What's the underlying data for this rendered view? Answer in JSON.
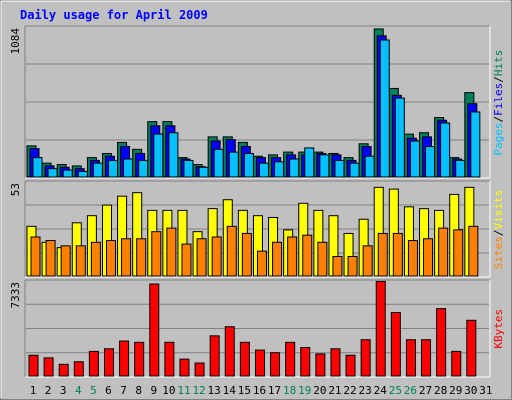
{
  "title": "Daily usage for April 2009",
  "colors": {
    "background": "#c0c0c0",
    "plot_bg": "#c0c0c0",
    "title": "#0000ff",
    "hits": "#00805c",
    "files": "#0000ff",
    "pages": "#00c0ff",
    "visits": "#ffff00",
    "sites": "#ff8000",
    "kbytes": "#ff0000",
    "weekend_tick": "#00805c",
    "weekday_tick": "#000000"
  },
  "chart_data": [
    {
      "type": "bar",
      "panel": "hits-files-pages",
      "y_axis_max_label": "1084",
      "ylim": [
        0,
        1084
      ],
      "legend": [
        {
          "label": "Pages",
          "color": "#00c0ff"
        },
        {
          "label": "/",
          "color": "#000000"
        },
        {
          "label": "Files",
          "color": "#0000ff"
        },
        {
          "label": "/",
          "color": "#000000"
        },
        {
          "label": "Hits",
          "color": "#00805c"
        }
      ],
      "categories": [
        "1",
        "2",
        "3",
        "4",
        "5",
        "6",
        "7",
        "8",
        "9",
        "10",
        "11",
        "12",
        "13",
        "14",
        "15",
        "16",
        "17",
        "18",
        "19",
        "20",
        "21",
        "22",
        "23",
        "24",
        "25",
        "26",
        "27",
        "28",
        "29",
        "30",
        "31"
      ],
      "series": [
        {
          "name": "Hits",
          "values": [
            225,
            100,
            90,
            80,
            140,
            170,
            250,
            200,
            400,
            400,
            140,
            90,
            290,
            290,
            250,
            150,
            160,
            180,
            180,
            180,
            170,
            140,
            240,
            1070,
            640,
            310,
            320,
            430,
            140,
            610,
            0
          ]
        },
        {
          "name": "Files",
          "values": [
            205,
            80,
            70,
            60,
            120,
            150,
            220,
            170,
            370,
            370,
            130,
            75,
            260,
            270,
            220,
            140,
            140,
            160,
            160,
            170,
            160,
            120,
            220,
            1020,
            590,
            280,
            290,
            410,
            130,
            530,
            0
          ]
        },
        {
          "name": "Pages",
          "values": [
            140,
            60,
            50,
            40,
            100,
            120,
            130,
            120,
            310,
            320,
            120,
            70,
            200,
            180,
            170,
            100,
            110,
            130,
            210,
            160,
            120,
            100,
            150,
            990,
            570,
            260,
            220,
            390,
            120,
            470,
            0
          ]
        }
      ]
    },
    {
      "type": "bar",
      "panel": "visits-sites",
      "y_axis_max_label": "53",
      "ylim": [
        0,
        53
      ],
      "legend": [
        {
          "label": "Sites",
          "color": "#ff8000"
        },
        {
          "label": "/",
          "color": "#000000"
        },
        {
          "label": "Visits",
          "color": "#ffff00"
        }
      ],
      "categories": [
        "1",
        "2",
        "3",
        "4",
        "5",
        "6",
        "7",
        "8",
        "9",
        "10",
        "11",
        "12",
        "13",
        "14",
        "15",
        "16",
        "17",
        "18",
        "19",
        "20",
        "21",
        "22",
        "23",
        "24",
        "25",
        "26",
        "27",
        "28",
        "29",
        "30",
        "31"
      ],
      "series": [
        {
          "name": "Visits",
          "values": [
            28,
            19,
            16,
            30,
            34,
            40,
            45,
            47,
            37,
            37,
            37,
            25,
            38,
            43,
            37,
            34,
            33,
            26,
            41,
            37,
            34,
            24,
            32,
            50,
            49,
            39,
            38,
            37,
            46,
            50,
            0
          ]
        },
        {
          "name": "Sites",
          "values": [
            22,
            20,
            17,
            17,
            19,
            20,
            21,
            21,
            25,
            27,
            18,
            21,
            22,
            28,
            24,
            14,
            19,
            22,
            23,
            19,
            11,
            11,
            17,
            24,
            24,
            20,
            21,
            27,
            26,
            28,
            0
          ]
        }
      ]
    },
    {
      "type": "bar",
      "panel": "kbytes",
      "y_axis_max_label": "7333",
      "ylim": [
        0,
        7333
      ],
      "legend": [
        {
          "label": "KBytes",
          "color": "#ff0000"
        }
      ],
      "categories": [
        "1",
        "2",
        "3",
        "4",
        "5",
        "6",
        "7",
        "8",
        "9",
        "10",
        "11",
        "12",
        "13",
        "14",
        "15",
        "16",
        "17",
        "18",
        "19",
        "20",
        "21",
        "22",
        "23",
        "24",
        "25",
        "26",
        "27",
        "28",
        "29",
        "30",
        "31"
      ],
      "series": [
        {
          "name": "KBytes",
          "values": [
            1600,
            1400,
            900,
            1100,
            1900,
            2100,
            2700,
            2600,
            7100,
            2600,
            1300,
            1000,
            3100,
            3800,
            2600,
            2000,
            1800,
            2600,
            2200,
            1700,
            2100,
            1600,
            2800,
            7300,
            4900,
            2800,
            2800,
            5200,
            1900,
            4300,
            0
          ]
        }
      ]
    }
  ],
  "x_ticks": [
    {
      "label": "1",
      "weekend": false
    },
    {
      "label": "2",
      "weekend": false
    },
    {
      "label": "3",
      "weekend": false
    },
    {
      "label": "4",
      "weekend": true
    },
    {
      "label": "5",
      "weekend": true
    },
    {
      "label": "6",
      "weekend": false
    },
    {
      "label": "7",
      "weekend": false
    },
    {
      "label": "8",
      "weekend": false
    },
    {
      "label": "9",
      "weekend": false
    },
    {
      "label": "10",
      "weekend": false
    },
    {
      "label": "11",
      "weekend": true
    },
    {
      "label": "12",
      "weekend": true
    },
    {
      "label": "13",
      "weekend": false
    },
    {
      "label": "14",
      "weekend": false
    },
    {
      "label": "15",
      "weekend": false
    },
    {
      "label": "16",
      "weekend": false
    },
    {
      "label": "17",
      "weekend": false
    },
    {
      "label": "18",
      "weekend": true
    },
    {
      "label": "19",
      "weekend": true
    },
    {
      "label": "20",
      "weekend": false
    },
    {
      "label": "21",
      "weekend": false
    },
    {
      "label": "22",
      "weekend": false
    },
    {
      "label": "23",
      "weekend": false
    },
    {
      "label": "24",
      "weekend": false
    },
    {
      "label": "25",
      "weekend": true
    },
    {
      "label": "26",
      "weekend": true
    },
    {
      "label": "27",
      "weekend": false
    },
    {
      "label": "28",
      "weekend": false
    },
    {
      "label": "29",
      "weekend": false
    },
    {
      "label": "30",
      "weekend": false
    },
    {
      "label": "31",
      "weekend": false
    }
  ]
}
